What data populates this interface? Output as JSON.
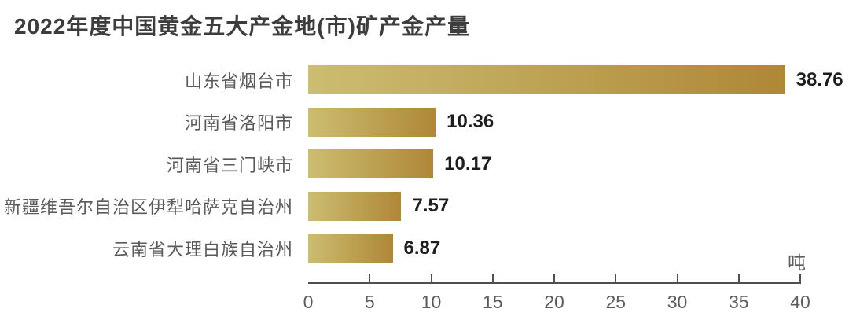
{
  "chart_data": {
    "type": "bar",
    "orientation": "horizontal",
    "title": "2022年度中国黄金五大产金地(市)矿产金产量",
    "unit": "吨",
    "categories": [
      "山东省烟台市",
      "河南省洛阳市",
      "河南省三门峡市",
      "新疆维吾尔自治区伊犁哈萨克自治州",
      "云南省大理白族自治州"
    ],
    "values": [
      38.76,
      10.36,
      10.17,
      7.57,
      6.87
    ],
    "value_labels": [
      "38.76",
      "10.36",
      "10.17",
      "7.57",
      "6.87"
    ],
    "xlim": [
      0,
      40
    ],
    "xticks": [
      0,
      5,
      10,
      15,
      20,
      25,
      30,
      35,
      40
    ],
    "grid": false,
    "legend": false,
    "colors": {
      "bar_gradient_start": "#CCBD71",
      "bar_gradient_end": "#AF8737",
      "title": "#3d3d3d",
      "category_label": "#5a5a5a",
      "value_label": "#1d1d1d",
      "axis": "#4f4f4f",
      "tick_label": "#5c5c5c",
      "background": "#ffffff"
    }
  }
}
